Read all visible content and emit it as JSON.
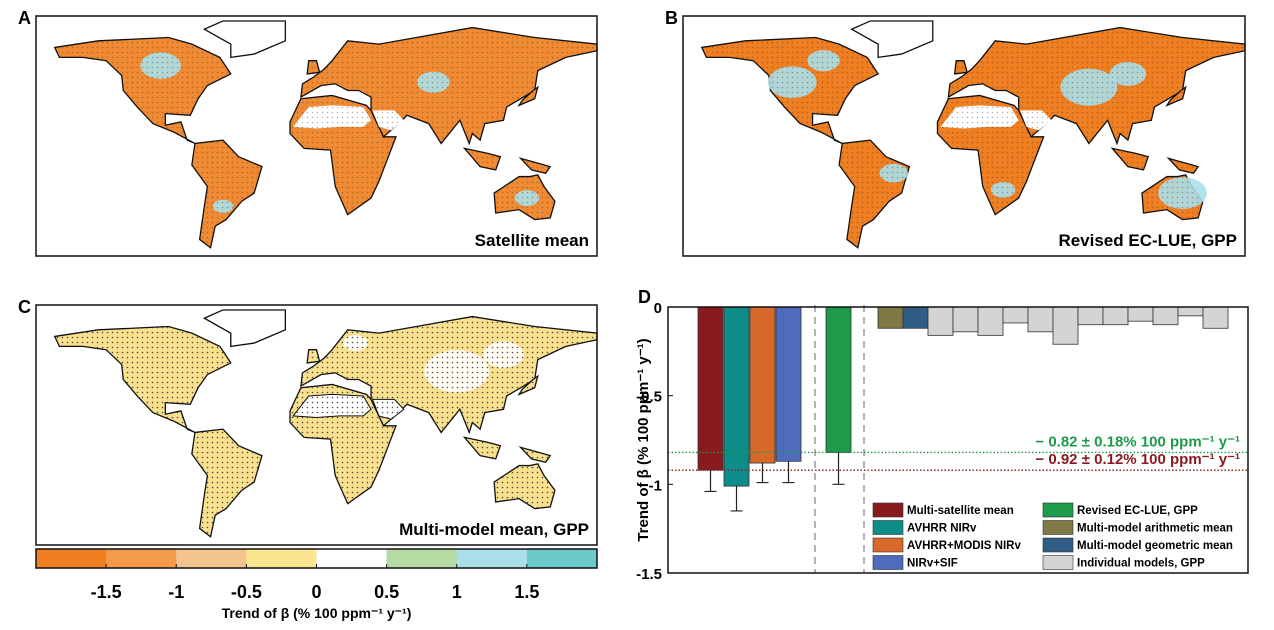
{
  "maps": [
    {
      "label": "A",
      "caption": "Satellite mean"
    },
    {
      "label": "B",
      "caption": "Revised EC-LUE, GPP"
    },
    {
      "label": "C",
      "caption": "Multi-model mean, GPP"
    }
  ],
  "colorbar": {
    "label": "Trend of β (% 100 ppm⁻¹ y⁻¹)",
    "xlim": [
      -2,
      2
    ],
    "xticks": [
      -1.5,
      -1,
      -0.5,
      0,
      0.5,
      1,
      1.5
    ],
    "colors": [
      "#f07f22",
      "#f39a4b",
      "#f4c48f",
      "#fbe690",
      "#ffffff",
      "#b5dba3",
      "#aadfe9",
      "#6ccaca"
    ]
  },
  "chart_data": {
    "type": "bar",
    "panel_label": "D",
    "y_label": "Trend of β (% 100 ppm⁻¹ y⁻¹)",
    "ylim": [
      -1.5,
      0
    ],
    "yticks": [
      -1.5,
      -1,
      -0.5,
      0
    ],
    "series": [
      {
        "name": "Multi-satellite mean",
        "color": "#8b1a1f",
        "values": [
          -0.92
        ],
        "errors": [
          0.12
        ]
      },
      {
        "name": "AVHRR NIRv",
        "color": "#0e8c8a",
        "values": [
          -1.01
        ],
        "errors": [
          0.14
        ]
      },
      {
        "name": "AVHRR+MODIS NIRv",
        "color": "#d9692a",
        "values": [
          -0.88
        ],
        "errors": [
          0.11
        ]
      },
      {
        "name": "NIRv+SIF",
        "color": "#4f6bbb",
        "values": [
          -0.87
        ],
        "errors": [
          0.12
        ]
      },
      {
        "name": "Revised EC-LUE, GPP",
        "color": "#1d9a4a",
        "values": [
          -0.82
        ],
        "errors": [
          0.18
        ]
      },
      {
        "name": "Multi-model arithmetic mean",
        "color": "#7f7a45",
        "values": [
          -0.12
        ]
      },
      {
        "name": "Multi-model geometric mean",
        "color": "#2f5d86",
        "values": [
          -0.12
        ]
      },
      {
        "name": "Individual models, GPP",
        "color": "#d4d4d4",
        "values": [
          -0.16,
          -0.14,
          -0.16,
          -0.09,
          -0.14,
          -0.21,
          -0.1,
          -0.1,
          -0.08,
          -0.1,
          -0.05,
          -0.12
        ]
      }
    ],
    "reference_lines": [
      {
        "value": -0.82,
        "label": "− 0.82 ± 0.18% 100 ppm⁻¹ y⁻¹",
        "color": "#1d9a4a"
      },
      {
        "value": -0.92,
        "label": "− 0.92 ± 0.12% 100 ppm⁻¹ y⁻¹",
        "color": "#8b1a1f"
      }
    ]
  }
}
